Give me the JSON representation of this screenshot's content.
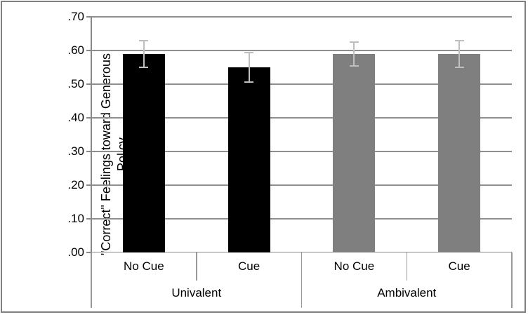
{
  "figure": {
    "background": "#ffffff",
    "border_color": "#808080"
  },
  "chart_data": {
    "type": "bar",
    "title": "",
    "ylabel": "\"Correct\" Feelings toward Generous Policy",
    "ylabel_lines": [
      "\"Correct\" Feelings toward Generous",
      "Policy"
    ],
    "xlabel": "",
    "categories": [
      "No Cue",
      "Cue",
      "No Cue",
      "Cue"
    ],
    "groups": [
      {
        "label": "Univalent",
        "span": 2
      },
      {
        "label": "Ambivalent",
        "span": 2
      }
    ],
    "values": [
      0.59,
      0.55,
      0.59,
      0.59
    ],
    "errors": [
      0.04,
      0.043,
      0.035,
      0.04
    ],
    "bar_colors": [
      "#000000",
      "#000000",
      "#7f7f7f",
      "#7f7f7f"
    ],
    "yticks": [
      {
        "label": ".00",
        "value": 0.0
      },
      {
        "label": ".10",
        "value": 0.1
      },
      {
        "label": ".20",
        "value": 0.2
      },
      {
        "label": ".30",
        "value": 0.3
      },
      {
        "label": ".40",
        "value": 0.4
      },
      {
        "label": ".50",
        "value": 0.5
      },
      {
        "label": ".60",
        "value": 0.6
      },
      {
        "label": ".70",
        "value": 0.7
      }
    ],
    "ylim": [
      0,
      0.7
    ],
    "grid": true,
    "legend": "none",
    "gridline_color": "#8e8e8e",
    "axis_line_color": "#888888",
    "error_bar_color": "#bfbfbf",
    "text_color": "#000000"
  }
}
